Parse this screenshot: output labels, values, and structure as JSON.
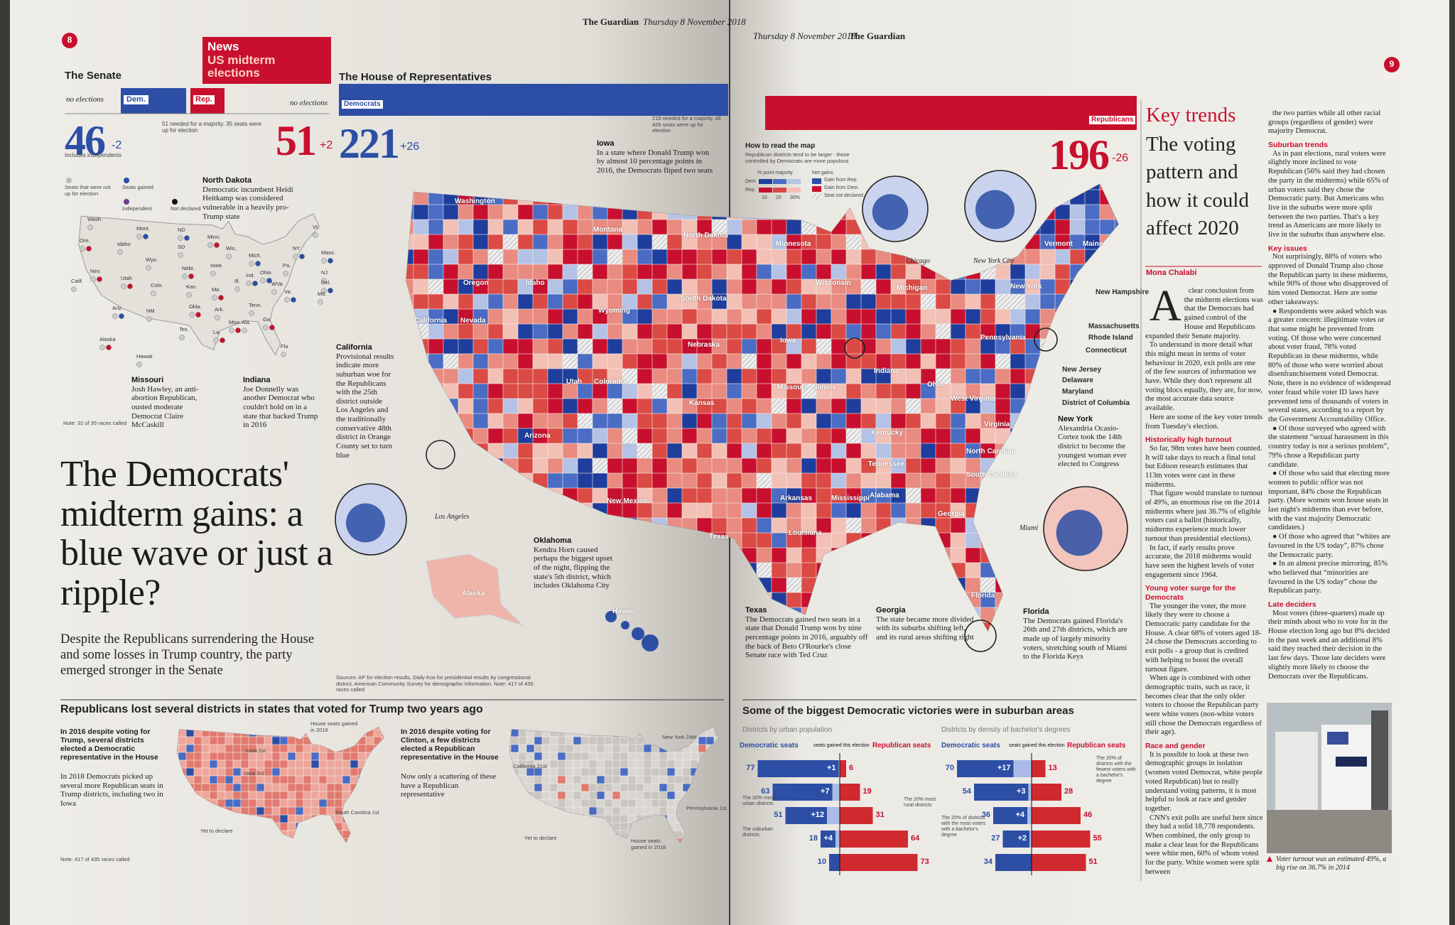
{
  "left_page": {
    "page_number": "8",
    "masthead": "The Guardian",
    "masthead_date": "Thursday 8 November 2018",
    "section": "News",
    "subsection": "US midterm elections"
  },
  "right_page": {
    "page_number": "9",
    "masthead": "The Guardian",
    "masthead_date": "Thursday 8 November 2018"
  },
  "senate": {
    "title": "The Senate",
    "no_elections_left": "no elections",
    "dem_label": "Dem.",
    "rep_label": "Rep.",
    "no_elections_right": "no elections",
    "majority_note": "51 needed for a majority. 35 seats were up for election",
    "dem_seats": "46",
    "dem_change": "-2",
    "dem_note": "Includes independents",
    "rep_seats": "51",
    "rep_change": "+2",
    "legend": [
      "Seats that were not up for election",
      "Seats gained",
      "Independent",
      "Not declared"
    ],
    "states": [
      "Wash.",
      "Ore.",
      "Calif.",
      "Nev.",
      "Idaho",
      "Mont.",
      "Wyo.",
      "Utah",
      "Colo.",
      "Ariz.",
      "NM",
      "ND",
      "SD",
      "Nebr.",
      "Kan.",
      "Okla.",
      "Tex.",
      "Minn.",
      "Iowa",
      "Mo.",
      "Ark.",
      "La.",
      "Wis.",
      "Mich.",
      "Ill.",
      "Ind.",
      "Tenn.",
      "Miss.",
      "Ala.",
      "Ga",
      "Fla",
      "Ohio",
      "WVa",
      "Va.",
      "Pa.",
      "NY",
      "Vt.",
      "Mass.",
      "NJ",
      "Del.",
      "Md.",
      "Alaska",
      "Hawaii"
    ],
    "note": "Note: 32 of 35 races called"
  },
  "house": {
    "title": "The House of Representatives",
    "dem_label": "Democrats",
    "rep_label": "Republicans",
    "dem_seats": "221",
    "dem_change": "+26",
    "rep_seats": "196",
    "rep_change": "-26",
    "majority_note": "218 needed for a majority. All 435 seats were up for election"
  },
  "headline": "The Democrats' midterm gains: a blue wave or just a ripple?",
  "standfirst": "Despite the Republicans surrendering the House and some losses in Trump country, the party emerged stronger in the Senate",
  "senate_annotations": [
    {
      "title": "North Dakota",
      "text": "Democratic incumbent Heidi Heitkamp was considered vulnerable in a heavily pro-Trump state"
    },
    {
      "title": "Missouri",
      "text": "Josh Hawley, an anti-abortion Republican, ousted moderate Democrat Claire McCaskill"
    },
    {
      "title": "Indiana",
      "text": "Joe Donnelly was another Democrat who couldn't hold on in a state that backed Trump in 2016"
    }
  ],
  "map": {
    "how_to_read": "How to read the map",
    "how_to_read_note": "Republican districts tend to be larger - those controlled by Democrats are more populous",
    "majority_label": "% point majority",
    "net_gains_label": "Net gains",
    "dem_key": "Dem",
    "rep_key": "Rep.",
    "scale": [
      "10",
      "20",
      "30%"
    ],
    "gain_rep": "Gain from Rep.",
    "gain_dem": "Gain from Dem.",
    "not_declared": "Seat not declared",
    "states": [
      "Washington",
      "Oregon",
      "California",
      "Nevada",
      "Idaho",
      "Montana",
      "Wyoming",
      "Utah",
      "Colorado",
      "Arizona",
      "New Mexico",
      "Texas",
      "Kansas",
      "Nebraska",
      "South Dakota",
      "North Dakota",
      "Minnesota",
      "Iowa",
      "Missouri",
      "Arkansas",
      "Louisiana",
      "Mississippi",
      "Alabama",
      "Georgia",
      "Florida",
      "Tennessee",
      "Kentucky",
      "Illinois",
      "Indiana",
      "Ohio",
      "Michigan",
      "Wisconsin",
      "Pennsylvania",
      "West Virginia",
      "Virginia",
      "North Carolina",
      "South Carolina",
      "New York",
      "Vermont",
      "Maine",
      "New Hampshire",
      "Massachusetts",
      "Rhode Island",
      "Connecticut",
      "New Jersey",
      "Delaware",
      "Maryland",
      "District of Columbia",
      "Alaska",
      "Hawaii"
    ],
    "insets": [
      "Los Angeles",
      "Chicago",
      "New York City",
      "Miami"
    ],
    "annotations": [
      {
        "title": "Iowa",
        "text": "In a state where Donald Trump won by almost 10 percentage points in 2016, the Democrats fliped two seats"
      },
      {
        "title": "California",
        "text": "Provisional results indicate more suburban woe for the Republicans with the 25th district outside Los Angeles and the traditionally conservative 48th district in Orange County set to turn blue"
      },
      {
        "title": "Oklahoma",
        "text": "Kendra Horn caused perhaps the biggest upset of the night, flipping the state's 5th district, which includes Oklahoma City"
      },
      {
        "title": "Texas",
        "text": "The Democrats gained two seats in a state that Donald Trump won by nine percentage points in 2016, arguably off the back of Beto O'Rourke's close Senate race with Ted Cruz"
      },
      {
        "title": "Georgia",
        "text": "The state became more divided with its suburbs shifting left, and its rural areas shifting right"
      },
      {
        "title": "Florida",
        "text": "The Democrats gained Florida's 26th and 27th districts, which are made up of largely minority voters, stretching south of Miami to the Florida Keys"
      },
      {
        "title": "New York",
        "text": "Alexandria Ocasio-Cortez took the 14th district to become the youngest woman ever elected to Congress"
      }
    ],
    "sources": "Sources: AP for election results, Daily Kos for presidential results by congressional district, American Community Survey for demographic information. Note: 417 of 435 races called"
  },
  "bottom_left": {
    "title": "Republicans lost several districts in states that voted for Trump two years ago",
    "left_lead": "In 2016 despite voting for Trump, several districts elected a Democratic representative in the House",
    "left_text": "In 2018 Democrats picked up several more Republican seats in Trump districts, including two in Iowa",
    "right_lead": "In 2016 despite voting for Clinton, a few districts elected a Republican representative in the House",
    "right_text": "Now only a scattering of these have a Republican representative",
    "map1_labels": [
      "House seats gained in 2018",
      "Iowa 1st",
      "Iowa 3rd",
      "South Carolina 1st",
      "Yet to declare"
    ],
    "map2_labels": [
      "New York 24th",
      "California 21st",
      "Pennsylvania 1st",
      "Yet to declare",
      "House seats gained in 2018"
    ],
    "note": "Note: 417 of 435 races called"
  },
  "suburban_chart": {
    "title": "Some of the biggest Democratic victories were in suburban areas",
    "charts": [
      {
        "subtitle": "Districts by urban population",
        "dem_header": "Democratic seats",
        "gain_header": "seats gained this election",
        "rep_header": "Republican seats",
        "dem": [
          77,
          63,
          51,
          18,
          10
        ],
        "gains": [
          1,
          7,
          12,
          4,
          null
        ],
        "gain_labels": [
          "+1",
          "+7",
          "+12",
          "+4",
          null
        ],
        "rep": [
          6,
          19,
          31,
          64,
          73
        ],
        "notes": [
          "The 20% most urban districts",
          "The suburban districts",
          "The 20% most rural districts"
        ]
      },
      {
        "subtitle": "Districts by density of bachelor's degrees",
        "dem_header": "Democratic seats",
        "gain_header": "seats gained this election",
        "rep_header": "Republican seats",
        "dem": [
          70,
          54,
          36,
          27,
          34
        ],
        "gains": [
          17,
          3,
          4,
          2,
          null
        ],
        "gain_labels": [
          "+17",
          "+3",
          "+4",
          "+2",
          null
        ],
        "rep": [
          13,
          28,
          46,
          55,
          51
        ],
        "notes": [
          "The 20% of districts with the most voters with a bachelor's degree",
          "The 20% of districts with the fewest voters with a bachelor's degree"
        ]
      }
    ]
  },
  "article": {
    "kicker": "Key trends",
    "headline": "The voting pattern and how it could affect 2020",
    "byline": "Mona Chalabi",
    "col1": [
      {
        "p": "A clear conclusion from the midterm elections was that the Democrats had gained control of the House and Republicans expanded their Senate majority."
      },
      {
        "p": "To understand in more detail what this might mean in terms of voter behaviour in 2020, exit polls are one of the few sources of information we have. While they don't represent all voting blocs equally, they are, for now, the most accurate data source available."
      },
      {
        "p": "Here are some of the key voter trends from Tuesday's election."
      },
      {
        "h": "Historically high turnout"
      },
      {
        "p": "So far, 98m votes have been counted. It will take days to reach a final total but Edison research estimates that 113m votes were cast in these midterms."
      },
      {
        "p": "That figure would translate to turnout of 49%, an enormous rise on the 2014 midterms where just 36.7% of eligible voters cast a ballot (historically, midterms experience much lower turnout than presidential elections)."
      },
      {
        "p": "In fact, if early results prove accurate, the 2018 midterms would have seen the highest levels of voter engagement since 1964."
      },
      {
        "h": "Young voter surge for the Democrats"
      },
      {
        "p": "The younger the voter, the more likely they were to choose a Democratic party candidate for the House. A clear 68% of voters aged 18-24 chose the Democrats according to exit polls - a group that is credited with helping to boost the overall turnout figure."
      },
      {
        "p": "When age is combined with other demographic traits, such as race, it becomes clear that the only older voters to choose the Republican party were white voters (non-white voters still chose the Democrats regardless of their age)."
      },
      {
        "h": "Race and gender"
      },
      {
        "p": "It is possible to look at these two demographic groups in isolation (women voted Democrat, white people voted Republican) but to really understand voting patterns, it is most helpful to look at race and gender together."
      },
      {
        "p": "CNN's exit polls are useful here since they had a solid 18,778 respondents. When combined, the only group to make a clear lean for the Republicans were white men, 60% of whom voted for the party. White women were split between"
      }
    ],
    "col2": [
      {
        "p": "the two parties while all other racial groups (regardless of gender) were majority Democrat."
      },
      {
        "h": "Suburban trends"
      },
      {
        "p": "As in past elections, rural voters were slightly more inclined to vote Republican (56% said they had chosen the party in the midterms) while 65% of urban voters said they chose the Democratic party. But Americans who live in the suburbs were more split between the two parties. That's a key trend as Americans are more likely to live in the suburbs than anywhere else."
      },
      {
        "h": "Key issues"
      },
      {
        "p": "Not surprisingly, 88% of voters who approved of Donald Trump also chose the Republican party in these midterms, while 90% of those who disapproved of him voted Democrat. Here are some other takeaways:"
      },
      {
        "p": "● Respondents were asked which was a greater concern: illegitimate votes or that some might be prevented from voting. Of those who were concerned about voter fraud, 78% voted Republican in these midterms, while 80% of those who were worried about disenfranchisement voted Democrat. Note, there is no evidence of widespread voter fraud while voter ID laws have prevented tens of thousands of voters in several states, according to a report by the Government Accountability Office."
      },
      {
        "p": "● Of those surveyed who agreed with the statement “sexual harassment in this country today is not a serious problem”, 79% chose a Republican party candidate."
      },
      {
        "p": "● Of those who said that electing more women to public office was not important, 84% chose the Republican party. (More women won house seats in last night's midterms than ever before, with the vast majority Democratic candidates.)"
      },
      {
        "p": "● Of those who agreed that “whites are favoured in the US today”, 87% chose the Democratic party."
      },
      {
        "p": "● In an almost precise mirroring, 85% who believed that “minorities are favoured in the US today” chose the Republican party."
      },
      {
        "h": "Late deciders"
      },
      {
        "p": "Most voters (three-quarters) made up their minds about who to vote for in the House election long ago but 8% decided in the past week and an additional 8% said they reached their decision in the last few days. Those late deciders were slightly more likely to choose the Democrats over the Republicans."
      }
    ],
    "caption": "Voter turnout was an estimated 49%, a big rise on 36.7% in 2014"
  }
}
